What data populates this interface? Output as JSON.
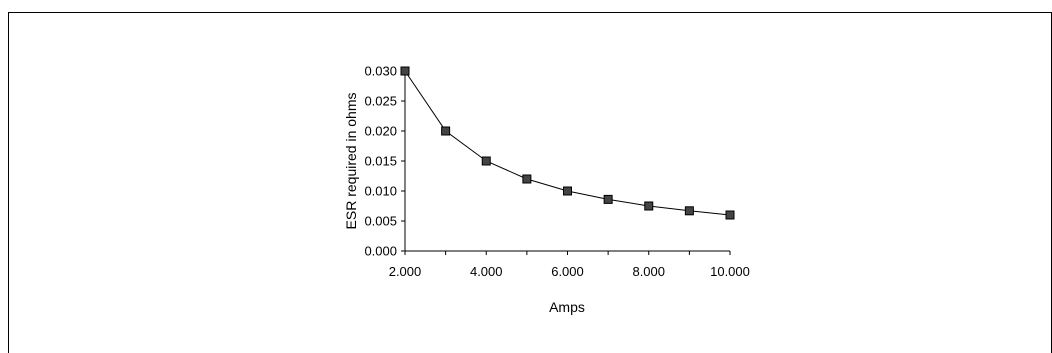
{
  "chart_data": {
    "type": "line",
    "title": "",
    "xlabel": "Amps",
    "ylabel": "ESR required in ohms",
    "x": [
      2,
      3,
      4,
      5,
      6,
      7,
      8,
      9,
      10
    ],
    "series": [
      {
        "values": [
          0.03,
          0.02,
          0.015,
          0.012,
          0.01,
          0.0086,
          0.0075,
          0.0067,
          0.006
        ]
      }
    ],
    "xlim": [
      2,
      10
    ],
    "ylim": [
      0,
      0.03
    ],
    "x_tick_labels": [
      "2.000",
      "4.000",
      "6.000",
      "8.000",
      "10.000"
    ],
    "y_tick_labels": [
      "0.000",
      "0.005",
      "0.010",
      "0.015",
      "0.020",
      "0.025",
      "0.030"
    ],
    "grid": false,
    "marker": "square",
    "colors": {
      "line": "#000000",
      "marker_fill": "#444444"
    }
  }
}
